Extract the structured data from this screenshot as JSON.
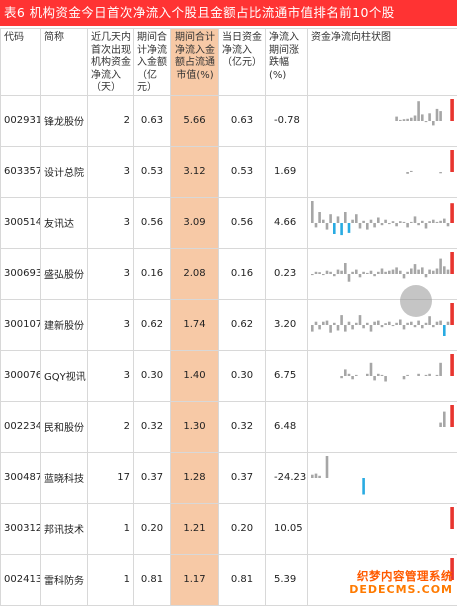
{
  "title": "表6 机构资金今日首次净流入个股且金额占比流通市值排名前10个股",
  "columns": {
    "code": "代码",
    "name": "简称",
    "days": "近几天内首次出现机构资金净流入（天）",
    "period_amount": "期间合计净流入金额（亿元）",
    "ratio": "期间合计净流入金额占流通市值(%)",
    "today": "当日资金净流入（亿元）",
    "change": "净流入期间涨跌幅(%)",
    "chart": "资金净流向柱状图"
  },
  "rows": [
    {
      "code": "002931",
      "name": "锋龙股份",
      "days": "2",
      "period_amount": "0.63",
      "ratio": "5.66",
      "today": "0.63",
      "change": "-0.78",
      "bars": [
        0,
        0,
        0,
        0,
        0,
        0,
        0,
        0,
        0,
        0,
        0,
        0,
        0,
        0,
        0,
        0,
        0,
        0,
        0,
        0,
        0,
        0,
        0,
        0.2,
        0.05,
        0.08,
        0.1,
        0.15,
        0.25,
        0.9,
        0.3,
        -0.05,
        0.35,
        -0.2,
        0.55,
        0.45,
        0,
        0,
        1.0
      ]
    },
    {
      "code": "603357",
      "name": "设计总院",
      "days": "3",
      "period_amount": "0.53",
      "ratio": "3.12",
      "today": "0.53",
      "change": "1.69",
      "bars": [
        0,
        0,
        0,
        0,
        0,
        0,
        0,
        0,
        0,
        0,
        0,
        0,
        0,
        0,
        0,
        0,
        0,
        0,
        0,
        0,
        0,
        0,
        0,
        0,
        0,
        0,
        -0.08,
        0.05,
        0,
        0,
        0,
        0,
        0,
        0,
        0,
        -0.06,
        0,
        0,
        1.0
      ]
    },
    {
      "code": "300514",
      "name": "友讯达",
      "days": "3",
      "period_amount": "0.56",
      "ratio": "3.09",
      "today": "0.56",
      "change": "4.66",
      "bars": [
        1.0,
        -0.2,
        0.5,
        0.15,
        -0.3,
        0.4,
        -0.5,
        0.3,
        -0.55,
        0.5,
        -0.45,
        0.15,
        0.4,
        -0.25,
        0.1,
        -0.3,
        0.15,
        -0.2,
        0.25,
        -0.1,
        0.15,
        -0.05,
        0.08,
        -0.15,
        0.08,
        0.05,
        -0.2,
        0.05,
        0.3,
        -0.1,
        0.1,
        -0.25,
        0.08,
        0.15,
        0.05,
        0.1,
        0.2,
        -0.15,
        0.9
      ]
    },
    {
      "code": "300693",
      "name": "盛弘股份",
      "days": "3",
      "period_amount": "0.16",
      "ratio": "2.08",
      "today": "0.16",
      "change": "0.23",
      "bars": [
        -0.05,
        0.1,
        0.08,
        -0.05,
        0.15,
        0.1,
        -0.1,
        0.2,
        0.15,
        0.5,
        -0.35,
        0.1,
        0.2,
        -0.15,
        0.1,
        0.05,
        0.15,
        -0.1,
        0.1,
        0.25,
        0.1,
        0.15,
        0.2,
        0.3,
        0.15,
        -0.2,
        0.1,
        0.25,
        0.45,
        0.2,
        0.3,
        -0.15,
        0.2,
        0.15,
        0.25,
        0.7,
        0.35,
        0.2,
        1.0
      ]
    },
    {
      "code": "300107",
      "name": "建新股份",
      "days": "3",
      "period_amount": "0.62",
      "ratio": "1.74",
      "today": "0.62",
      "change": "3.20",
      "bars": [
        -0.3,
        0.15,
        -0.2,
        0.15,
        0.2,
        -0.35,
        0.1,
        -0.25,
        0.45,
        -0.3,
        0.15,
        -0.2,
        0.1,
        0.45,
        -0.15,
        0.1,
        -0.3,
        0.15,
        0.2,
        -0.1,
        0.08,
        0.15,
        -0.05,
        0.1,
        0.25,
        -0.2,
        0.1,
        0.15,
        -0.1,
        0.2,
        -0.15,
        0.1,
        0.4,
        -0.1,
        0.15,
        0.2,
        -0.5,
        0.15,
        1.0
      ]
    },
    {
      "code": "300076",
      "name": "GQY视讯",
      "days": "3",
      "period_amount": "0.30",
      "ratio": "1.40",
      "today": "0.30",
      "change": "6.75",
      "bars": [
        0,
        0,
        0,
        0,
        0,
        0,
        0,
        0,
        -0.1,
        0.3,
        0.1,
        -0.15,
        0.05,
        0,
        0,
        0.1,
        0.6,
        -0.2,
        0.1,
        0.05,
        -0.25,
        0,
        0,
        0,
        0,
        -0.15,
        0.05,
        0,
        0,
        0.1,
        0,
        0.05,
        0.1,
        0,
        0.05,
        0.6,
        0,
        0,
        1.0
      ]
    },
    {
      "code": "002234",
      "name": "民和股份",
      "days": "2",
      "period_amount": "0.32",
      "ratio": "1.30",
      "today": "0.32",
      "change": "6.48",
      "bars": [
        0,
        0,
        0,
        0,
        0,
        0,
        0,
        0,
        0,
        0,
        0,
        0,
        0,
        0,
        0,
        0,
        0,
        0,
        0,
        0,
        0,
        0,
        0,
        0,
        0,
        0,
        0,
        0,
        0,
        0,
        0,
        0,
        0,
        0,
        0,
        0.2,
        0.7,
        0,
        1.0
      ]
    },
    {
      "code": "300487",
      "name": "蓝晓科技",
      "days": "17",
      "period_amount": "0.37",
      "ratio": "1.28",
      "today": "0.37",
      "change": "-24.23",
      "bars": [
        0.15,
        0.2,
        0.1,
        0,
        1.0,
        0,
        0,
        0,
        0,
        0,
        0,
        0,
        0,
        0,
        -0.75,
        0,
        0,
        0,
        0,
        0,
        0,
        0,
        0,
        0,
        0,
        0,
        0,
        0,
        0,
        0,
        0,
        0,
        0,
        0,
        0,
        0,
        0,
        0,
        0
      ]
    },
    {
      "code": "300312",
      "name": "邦讯技术",
      "days": "1",
      "period_amount": "0.20",
      "ratio": "1.21",
      "today": "0.20",
      "change": "10.05",
      "bars": [
        0,
        0,
        0,
        0,
        0,
        0,
        0,
        0,
        0,
        0,
        0,
        0,
        0,
        0,
        0,
        0,
        0,
        0,
        0,
        0,
        0,
        0,
        0,
        0,
        0,
        0,
        0,
        0,
        0,
        0,
        0,
        0,
        0,
        0,
        0,
        0,
        0,
        0,
        1.0
      ]
    },
    {
      "code": "002413",
      "name": "雷科防务",
      "days": "1",
      "period_amount": "0.81",
      "ratio": "1.17",
      "today": "0.81",
      "change": "5.39",
      "bars": [
        0,
        0,
        0,
        0,
        0,
        0,
        0,
        0,
        0,
        0,
        0,
        0,
        0,
        0,
        0,
        0,
        0,
        0,
        0,
        0,
        0,
        0,
        0,
        0,
        0,
        0,
        0,
        0,
        0,
        0,
        0,
        0,
        0,
        0,
        0,
        0,
        0,
        0,
        1.0
      ]
    }
  ],
  "watermark": {
    "line1": "织梦内容管理系统",
    "line2": "DEDECMS.COM"
  },
  "colors": {
    "title_bg": "#ff3333",
    "highlight": "#f7c9a6",
    "bar_pos": "#a6a6a6",
    "bar_neg": "#29abe2",
    "bar_today": "#e8352f"
  }
}
